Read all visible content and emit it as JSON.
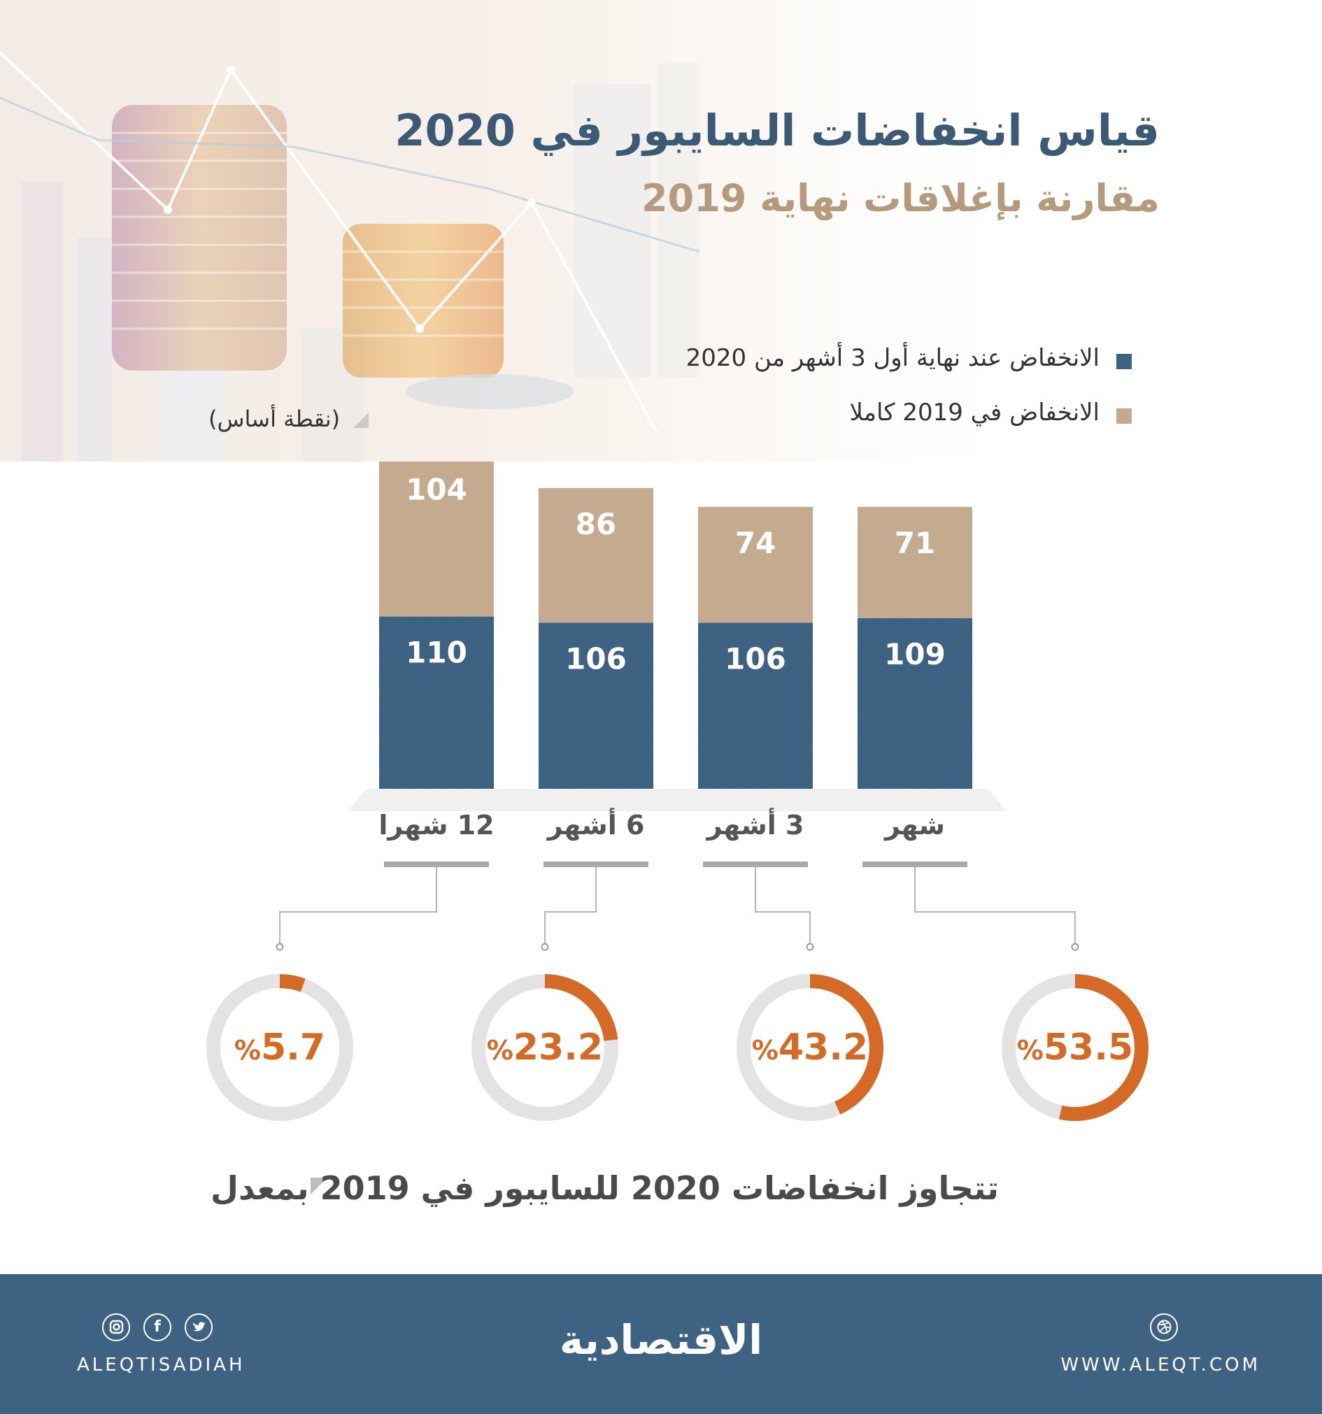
{
  "title": "قياس انخفاضات السايبور في 2020",
  "subtitle": "مقارنة بإغلاقات نهاية 2019",
  "legend": [
    {
      "label": "الانخفاض عند نهاية أول 3 أشهر من 2020",
      "color": "#3e6281"
    },
    {
      "label": "الانخفاض في 2019 كاملا",
      "color": "#c4ab90"
    }
  ],
  "unit_label": "(نقطة أساس)",
  "caption": "تتجاوز انخفاضات 2020 للسايبور في 2019 بمعدل",
  "colors": {
    "blue": "#3e6281",
    "tan": "#c4ab90",
    "orange": "#d46a25",
    "ring": "#e3e3e3"
  },
  "chart_data": {
    "type": "bar",
    "stacked": true,
    "categories": [
      "12 شهرا",
      "6 أشهر",
      "3 أشهر",
      "شهر"
    ],
    "series": [
      {
        "name": "الانخفاض عند نهاية أول 3 أشهر من 2020",
        "values": [
          110,
          106,
          106,
          109
        ]
      },
      {
        "name": "الانخفاض في 2019 كاملا",
        "values": [
          104,
          86,
          74,
          71
        ]
      }
    ],
    "data_labels": {
      "blue": [
        "110",
        "106",
        "106",
        "109"
      ],
      "tan": [
        "104",
        "86",
        "74",
        "71"
      ]
    },
    "excess_percent": [
      5.7,
      23.2,
      43.2,
      53.5
    ],
    "excess_labels": [
      "5.7",
      "23.2",
      "43.2",
      "53.5"
    ],
    "percent_sign": "%"
  },
  "footer": {
    "brand": "الاقتصادية",
    "handle": "ALEQTISADIAH",
    "website": "WWW.ALEQT.COM",
    "social_icons": [
      "instagram-icon",
      "facebook-icon",
      "twitter-icon"
    ],
    "web_icon": "dribbble-icon"
  }
}
